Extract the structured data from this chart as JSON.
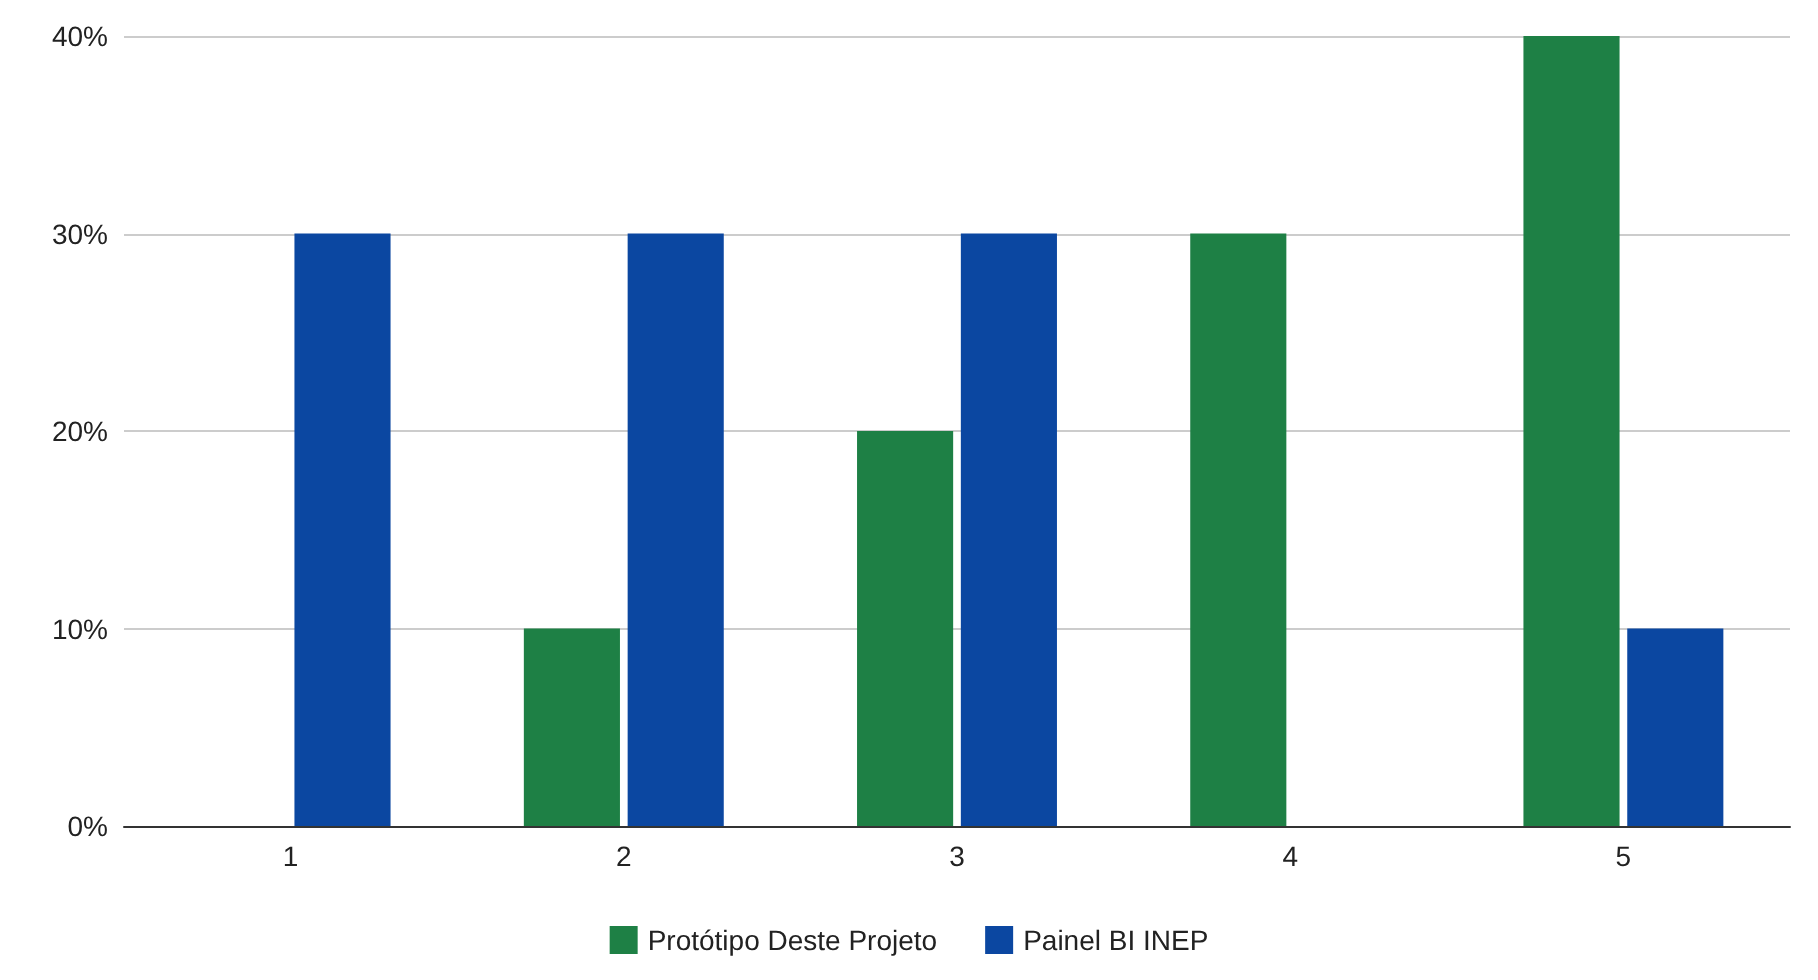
{
  "chart_data": {
    "type": "bar",
    "categories": [
      "1",
      "2",
      "3",
      "4",
      "5"
    ],
    "series": [
      {
        "name": "Protótipo Deste Projeto",
        "color": "#1e8045",
        "values": [
          0,
          10,
          20,
          30,
          40
        ]
      },
      {
        "name": "Painel BI INEP",
        "color": "#0b47a1",
        "values": [
          30,
          30,
          30,
          0,
          10
        ]
      }
    ],
    "ylim": [
      0,
      40
    ],
    "yticks": [
      {
        "value": 0,
        "label": "0%"
      },
      {
        "value": 10,
        "label": "10%"
      },
      {
        "value": 20,
        "label": "20%"
      },
      {
        "value": 30,
        "label": "30%"
      },
      {
        "value": 40,
        "label": "40%"
      }
    ],
    "grid": "y",
    "legend": "bottom"
  }
}
